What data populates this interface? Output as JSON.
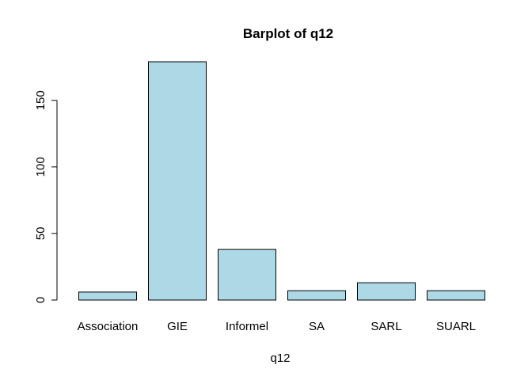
{
  "chart_data": {
    "type": "bar",
    "title": "Barplot of q12",
    "xlabel": "q12",
    "ylabel": "",
    "categories": [
      "Association",
      "GIE",
      "Informel",
      "SA",
      "SARL",
      "SUARL"
    ],
    "values": [
      6,
      179,
      38,
      7,
      13,
      7
    ],
    "ylim": [
      0,
      179
    ],
    "yticks": [
      0,
      50,
      100,
      150
    ],
    "bar_color": "#ADD8E6",
    "bar_border_color": "#000000",
    "grid": false,
    "legend": "none"
  }
}
